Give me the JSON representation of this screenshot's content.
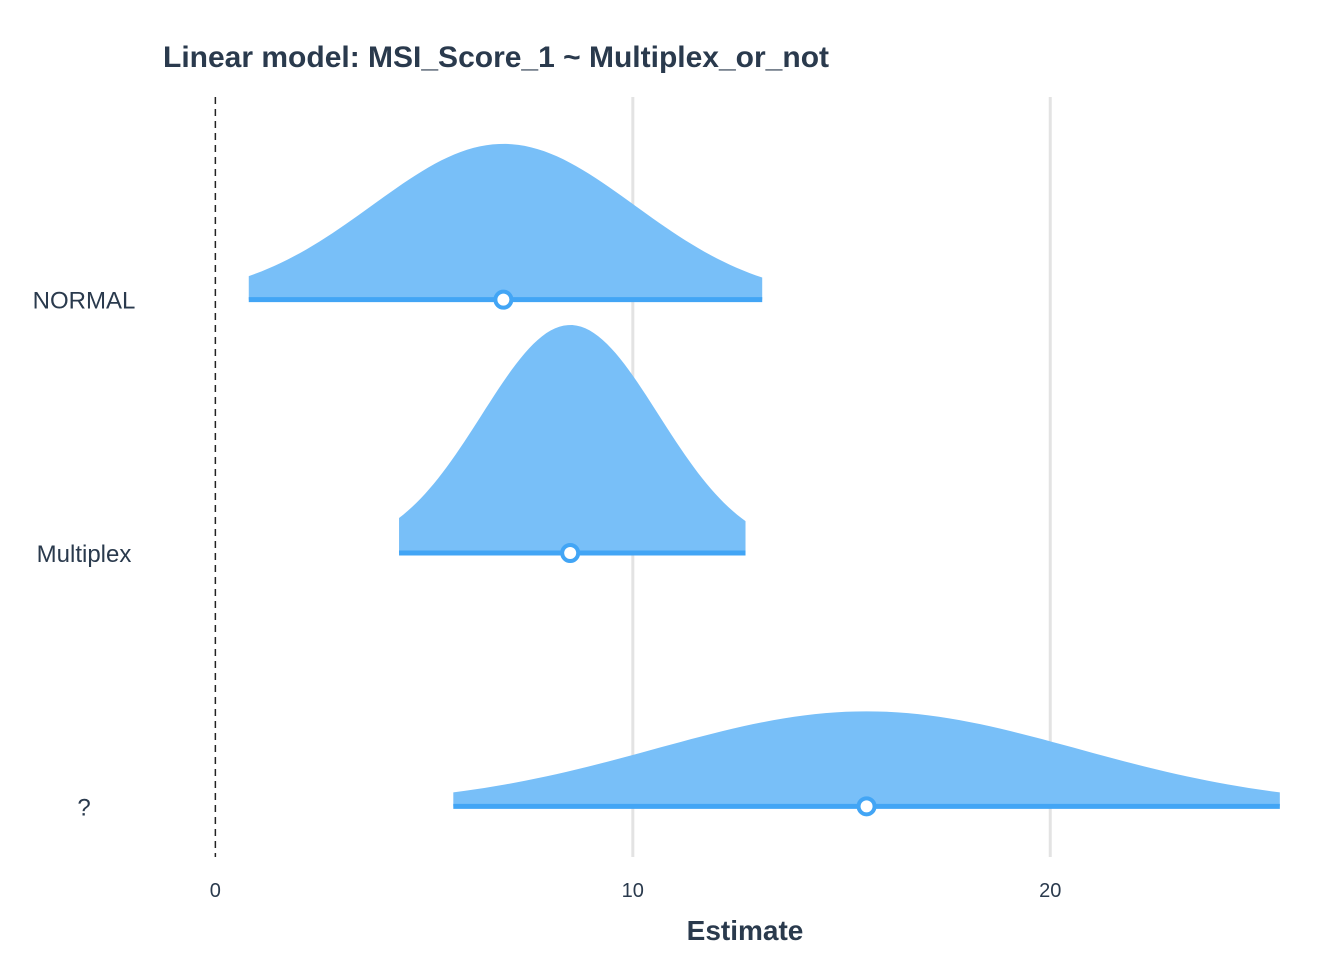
{
  "chart_data": {
    "type": "area",
    "title": "Linear model: MSI_Score_1 ~ Multiplex_or_not",
    "xlabel": "Estimate",
    "ylabel": "",
    "xlim": [
      -4.8,
      25.6
    ],
    "x_ticks": [
      0,
      10,
      20
    ],
    "reference_line": 0,
    "grid": "vertical",
    "fill_color": "#78bff8",
    "line_color": "#42a5f5",
    "point_fill": "#ffffff",
    "categories": [
      "NORMAL",
      "Multiplex",
      "?"
    ],
    "series": [
      {
        "name": "NORMAL",
        "estimate": 6.9,
        "ci_low": 0.8,
        "ci_high": 13.1,
        "relative_peak": 0.41
      },
      {
        "name": "Multiplex",
        "estimate": 8.5,
        "ci_low": 4.4,
        "ci_high": 12.7,
        "relative_peak": 0.6
      },
      {
        "name": "?",
        "estimate": 15.6,
        "ci_low": 5.7,
        "ci_high": 25.5,
        "relative_peak": 0.25
      }
    ]
  }
}
